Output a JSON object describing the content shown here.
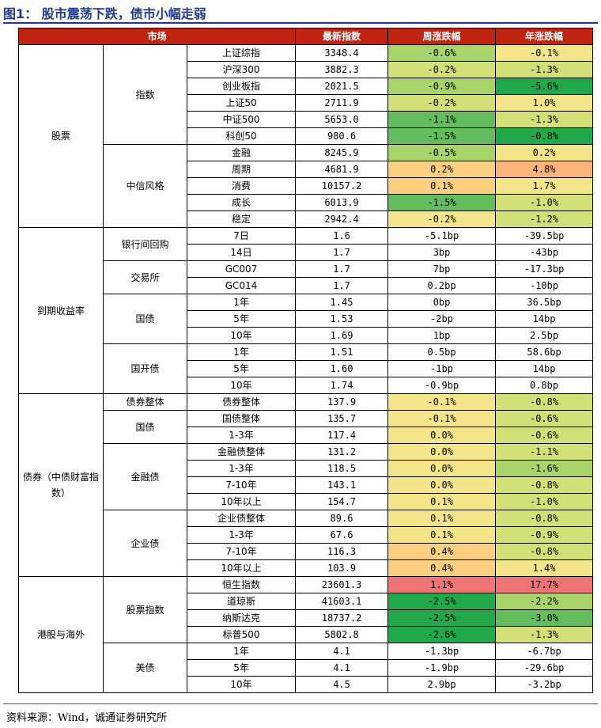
{
  "title": "图1：  股市震荡下跌，债市小幅走弱",
  "headers": [
    "市场",
    "最新指数",
    "周涨跌幅",
    "年涨跌幅"
  ],
  "colors": {
    "header_bg": "#c0230f",
    "green_dark": "#21a84a",
    "green_mid": "#63bd5e",
    "green_light": "#a9d46c",
    "lime": "#d3e078",
    "yellow": "#f5e58a",
    "orange_light": "#fcd080",
    "orange": "#fbb57a",
    "red": "#f07375"
  },
  "sections": [
    {
      "name": "股票",
      "groups": [
        {
          "name": "指数",
          "rows": [
            {
              "item": "上证综指",
              "latest": "3348.4",
              "weekly": "-0.6%",
              "yearly": "-0.1%",
              "wc": "green_light",
              "yc": "yellow"
            },
            {
              "item": "沪深300",
              "latest": "3882.3",
              "weekly": "-0.2%",
              "yearly": "-1.3%",
              "wc": "lime",
              "yc": "lime"
            },
            {
              "item": "创业板指",
              "latest": "2021.5",
              "weekly": "-0.9%",
              "yearly": "-5.6%",
              "wc": "green_light",
              "yc": "green_dark"
            },
            {
              "item": "上证50",
              "latest": "2711.9",
              "weekly": "-0.2%",
              "yearly": "1.0%",
              "wc": "lime",
              "yc": "yellow"
            },
            {
              "item": "中证500",
              "latest": "5653.0",
              "weekly": "-1.1%",
              "yearly": "-1.3%",
              "wc": "green_mid",
              "yc": "lime"
            },
            {
              "item": "科创50",
              "latest": "980.6",
              "weekly": "-1.5%",
              "yearly": "-0.8%",
              "wc": "green_mid",
              "yc": "green_dark"
            }
          ]
        },
        {
          "name": "中信风格",
          "rows": [
            {
              "item": "金融",
              "latest": "8245.9",
              "weekly": "-0.5%",
              "yearly": "0.2%",
              "wc": "green_light",
              "yc": "yellow"
            },
            {
              "item": "周期",
              "latest": "4681.9",
              "weekly": "0.2%",
              "yearly": "4.8%",
              "wc": "orange_light",
              "yc": "orange"
            },
            {
              "item": "消费",
              "latest": "10157.2",
              "weekly": "0.1%",
              "yearly": "1.7%",
              "wc": "orange_light",
              "yc": "yellow"
            },
            {
              "item": "成长",
              "latest": "6013.9",
              "weekly": "-1.5%",
              "yearly": "-1.0%",
              "wc": "green_mid",
              "yc": "lime"
            },
            {
              "item": "稳定",
              "latest": "2942.4",
              "weekly": "-0.2%",
              "yearly": "-1.2%",
              "wc": "yellow",
              "yc": "lime"
            }
          ]
        }
      ]
    },
    {
      "name": "到期收益率",
      "groups": [
        {
          "name": "银行间回购",
          "rows": [
            {
              "item": "7日",
              "latest": "1.6",
              "weekly": "-5.1bp",
              "yearly": "-39.5bp"
            },
            {
              "item": "14日",
              "latest": "1.7",
              "weekly": "3bp",
              "yearly": "-43bp"
            }
          ]
        },
        {
          "name": "交易所",
          "rows": [
            {
              "item": "GC007",
              "latest": "1.7",
              "weekly": "7bp",
              "yearly": "-17.3bp"
            },
            {
              "item": "GC014",
              "latest": "1.7",
              "weekly": "0.2bp",
              "yearly": "-10bp"
            }
          ]
        },
        {
          "name": "国债",
          "rows": [
            {
              "item": "1年",
              "latest": "1.45",
              "weekly": "0bp",
              "yearly": "36.5bp"
            },
            {
              "item": "5年",
              "latest": "1.53",
              "weekly": "-2bp",
              "yearly": "14bp"
            },
            {
              "item": "10年",
              "latest": "1.69",
              "weekly": "1bp",
              "yearly": "2.5bp"
            }
          ]
        },
        {
          "name": "国开债",
          "rows": [
            {
              "item": "1年",
              "latest": "1.51",
              "weekly": "0.5bp",
              "yearly": "58.6bp"
            },
            {
              "item": "5年",
              "latest": "1.60",
              "weekly": "-1bp",
              "yearly": "14bp"
            },
            {
              "item": "10年",
              "latest": "1.74",
              "weekly": "-0.9bp",
              "yearly": "0.8bp"
            }
          ]
        }
      ]
    },
    {
      "name": "债券（中债财富指数）",
      "groups": [
        {
          "name": "债券整体",
          "rows": [
            {
              "item": "债券整体",
              "latest": "137.9",
              "weekly": "-0.1%",
              "yearly": "-0.8%",
              "wc": "yellow",
              "yc": "lime"
            }
          ]
        },
        {
          "name": "国债",
          "rows": [
            {
              "item": "国债整体",
              "latest": "135.7",
              "weekly": "-0.1%",
              "yearly": "-0.6%",
              "wc": "yellow",
              "yc": "lime"
            },
            {
              "item": "1-3年",
              "latest": "117.4",
              "weekly": "0.0%",
              "yearly": "-0.6%",
              "wc": "yellow",
              "yc": "lime"
            }
          ]
        },
        {
          "name": "金融债",
          "rows": [
            {
              "item": "金融债整体",
              "latest": "131.2",
              "weekly": "0.0%",
              "yearly": "-1.1%",
              "wc": "yellow",
              "yc": "lime"
            },
            {
              "item": "1-3年",
              "latest": "118.5",
              "weekly": "0.0%",
              "yearly": "-1.6%",
              "wc": "yellow",
              "yc": "green_light"
            },
            {
              "item": "7-10年",
              "latest": "143.1",
              "weekly": "0.0%",
              "yearly": "-0.8%",
              "wc": "yellow",
              "yc": "lime"
            },
            {
              "item": "10年以上",
              "latest": "154.7",
              "weekly": "0.1%",
              "yearly": "-1.0%",
              "wc": "yellow",
              "yc": "lime"
            }
          ]
        },
        {
          "name": "企业债",
          "rows": [
            {
              "item": "企业债整体",
              "latest": "89.6",
              "weekly": "0.1%",
              "yearly": "-0.8%",
              "wc": "yellow",
              "yc": "lime"
            },
            {
              "item": "1-3年",
              "latest": "67.6",
              "weekly": "0.1%",
              "yearly": "-0.9%",
              "wc": "yellow",
              "yc": "lime"
            },
            {
              "item": "7-10年",
              "latest": "116.3",
              "weekly": "0.4%",
              "yearly": "-0.8%",
              "wc": "orange_light",
              "yc": "lime"
            },
            {
              "item": "10年以上",
              "latest": "103.9",
              "weekly": "0.4%",
              "yearly": "1.4%",
              "wc": "orange_light",
              "yc": "yellow"
            }
          ]
        }
      ]
    },
    {
      "name": "港股与海外",
      "groups": [
        {
          "name": "股票指数",
          "rows": [
            {
              "item": "恒生指数",
              "latest": "23601.3",
              "weekly": "1.1%",
              "yearly": "17.7%",
              "wc": "red",
              "yc": "red"
            },
            {
              "item": "道琼斯",
              "latest": "41603.1",
              "weekly": "-2.5%",
              "yearly": "-2.2%",
              "wc": "green_dark",
              "yc": "green_light"
            },
            {
              "item": "纳斯达克",
              "latest": "18737.2",
              "weekly": "-2.5%",
              "yearly": "-3.0%",
              "wc": "green_dark",
              "yc": "green_mid"
            },
            {
              "item": "标普500",
              "latest": "5802.8",
              "weekly": "-2.6%",
              "yearly": "-1.3%",
              "wc": "green_dark",
              "yc": "lime"
            }
          ]
        },
        {
          "name": "美债",
          "rows": [
            {
              "item": "1年",
              "latest": "4.1",
              "weekly": "-1.3bp",
              "yearly": "-6.7bp"
            },
            {
              "item": "5年",
              "latest": "4.1",
              "weekly": "-1.9bp",
              "yearly": "-29.6bp"
            },
            {
              "item": "10年",
              "latest": "4.5",
              "weekly": "2.9bp",
              "yearly": "-3.2bp"
            }
          ]
        }
      ]
    }
  ],
  "footer": "资料来源：Wind，诚通证券研究所"
}
